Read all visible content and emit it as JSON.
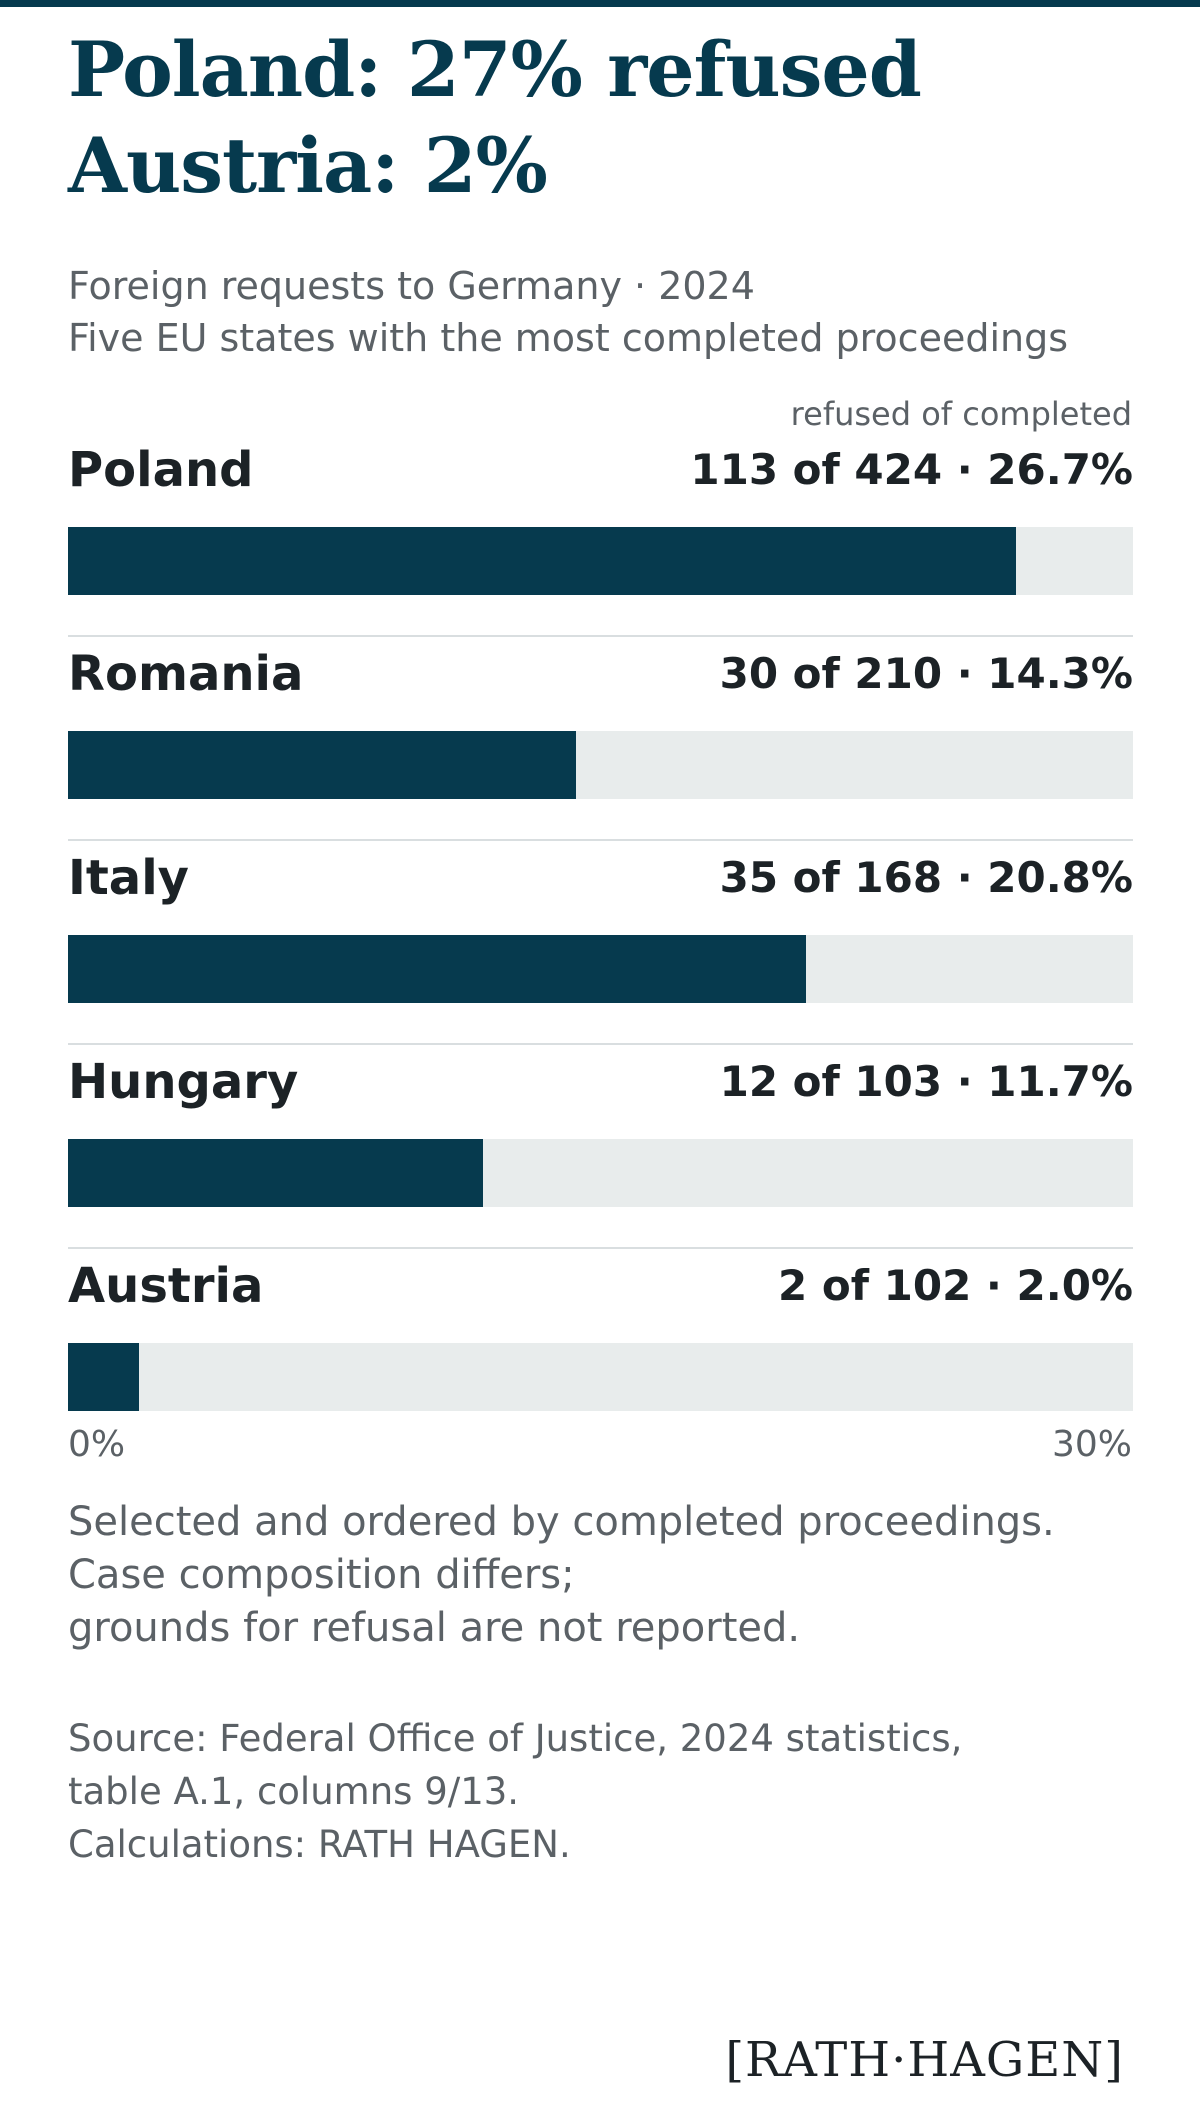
{
  "headline": {
    "line1": "Poland: 27% refused",
    "line2": "Austria: 2%"
  },
  "subtitle": {
    "line1": "Foreign requests to Germany · 2024",
    "line2": "Five EU states with the most completed proceedings"
  },
  "column_header": "refused of completed",
  "colors": {
    "bar": "#063a4e",
    "track": "#e8ecec",
    "headline": "#063a4e"
  },
  "chart_data": {
    "type": "bar",
    "orientation": "horizontal",
    "categories": [
      "Poland",
      "Romania",
      "Italy",
      "Hungary",
      "Austria"
    ],
    "values": [
      26.7,
      14.3,
      20.8,
      11.7,
      2.0
    ],
    "refused": [
      113,
      30,
      35,
      12,
      2
    ],
    "completed": [
      424,
      210,
      168,
      103,
      102
    ],
    "value_labels": [
      "113 of 424 · 26.7%",
      "30 of 210 · 14.3%",
      "35 of 168 · 20.8%",
      "12 of 103 · 11.7%",
      "2 of 102 · 2.0%"
    ],
    "xlim": [
      0,
      30
    ],
    "axis_min_label": "0%",
    "axis_max_label": "30%",
    "grid": false
  },
  "notes": [
    "Selected and ordered by completed proceedings.",
    "Case composition differs;",
    "grounds for refusal are not reported."
  ],
  "source": [
    "Source: Federal Office of Justice, 2024 statistics,",
    "table A.1, columns 9/13.",
    "Calculations: RATH HAGEN."
  ],
  "brand": "[RATH·HAGEN]"
}
